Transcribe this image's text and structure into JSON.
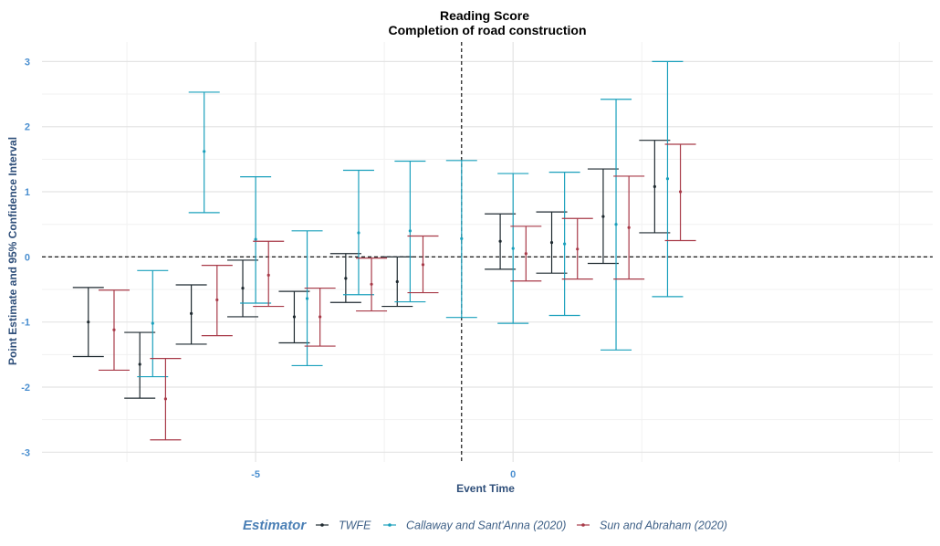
{
  "chart_data": {
    "type": "errorbar",
    "title": "Reading Score",
    "subtitle": "Completion of road construction",
    "xlabel": "Event Time",
    "ylabel": "Point Estimate and 95% Confidence Interval",
    "xlim": [
      -9.15,
      8.15
    ],
    "ylim": [
      -3.15,
      3.3
    ],
    "x_ticks": [
      -5,
      0
    ],
    "y_ticks": [
      -3,
      -2,
      -1,
      0,
      1,
      2,
      3
    ],
    "reference_lines": {
      "x": -1,
      "y": 0,
      "style": "dashed"
    },
    "grid": true,
    "legend": {
      "title": "Estimator",
      "position": "bottom"
    },
    "x": [
      -8,
      -7,
      -6,
      -5,
      -4,
      -3,
      -2,
      -1,
      0,
      1,
      2,
      3
    ],
    "series": [
      {
        "name": "TWFE",
        "color": "#1f2a30",
        "offset": -0.25,
        "estimate": [
          -1.0,
          -1.65,
          -0.87,
          -0.48,
          -0.92,
          -0.33,
          -0.38,
          null,
          0.24,
          0.22,
          0.62,
          1.08
        ],
        "lower": [
          -1.53,
          -2.17,
          -1.34,
          -0.92,
          -1.32,
          -0.7,
          -0.76,
          null,
          -0.19,
          -0.25,
          -0.1,
          0.37
        ],
        "upper": [
          -0.47,
          -1.16,
          -0.43,
          -0.05,
          -0.53,
          0.05,
          0.0,
          null,
          0.66,
          0.69,
          1.35,
          1.79
        ]
      },
      {
        "name": "Callaway and Sant'Anna (2020)",
        "color": "#1aa0bc",
        "offset": 0.0,
        "estimate": [
          null,
          -1.02,
          1.62,
          0.27,
          -0.64,
          0.37,
          0.4,
          0.28,
          0.13,
          0.2,
          0.5,
          1.2
        ],
        "lower": [
          null,
          -1.84,
          0.68,
          -0.71,
          -1.67,
          -0.58,
          -0.69,
          -0.93,
          -1.02,
          -0.9,
          -1.43,
          -0.61
        ],
        "upper": [
          null,
          -0.21,
          2.53,
          1.23,
          0.4,
          1.33,
          1.47,
          1.48,
          1.28,
          1.3,
          2.42,
          3.0
        ]
      },
      {
        "name": "Sun and Abraham (2020)",
        "color": "#a83a48",
        "offset": 0.25,
        "estimate": [
          -1.12,
          -2.18,
          -0.66,
          -0.28,
          -0.92,
          -0.42,
          -0.12,
          null,
          0.05,
          0.12,
          0.45,
          1.0
        ],
        "lower": [
          -1.74,
          -2.81,
          -1.21,
          -0.76,
          -1.37,
          -0.83,
          -0.55,
          null,
          -0.37,
          -0.34,
          -0.34,
          0.25
        ],
        "upper": [
          -0.51,
          -1.56,
          -0.13,
          0.24,
          -0.48,
          -0.02,
          0.32,
          null,
          0.47,
          0.59,
          1.24,
          1.73
        ]
      }
    ]
  }
}
